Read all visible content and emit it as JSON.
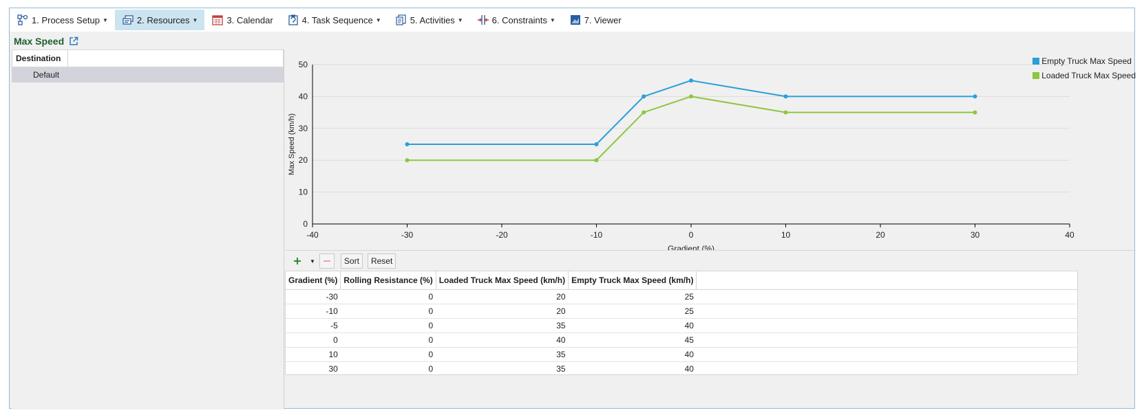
{
  "toolbar": {
    "items": [
      {
        "label": "1. Process Setup",
        "icon": "process-setup-icon",
        "dropdown": true
      },
      {
        "label": "2. Resources",
        "icon": "resources-icon",
        "dropdown": true,
        "active": true
      },
      {
        "label": "3. Calendar",
        "icon": "calendar-icon",
        "dropdown": false
      },
      {
        "label": "4. Task Sequence",
        "icon": "task-sequence-icon",
        "dropdown": true
      },
      {
        "label": "5. Activities",
        "icon": "activities-icon",
        "dropdown": true
      },
      {
        "label": "6. Constraints",
        "icon": "constraints-icon",
        "dropdown": true
      },
      {
        "label": "7. Viewer",
        "icon": "viewer-icon",
        "dropdown": false
      }
    ]
  },
  "section": {
    "title": "Max Speed",
    "icon": "external-link-icon"
  },
  "left_panel": {
    "header": "Destination",
    "rows": [
      "Default"
    ]
  },
  "grid_toolbar": {
    "add_icon": "plus-icon",
    "remove_icon": "minus-icon",
    "sort_label": "Sort",
    "reset_label": "Reset"
  },
  "table": {
    "columns": [
      "Gradient (%)",
      "Rolling Resistance (%)",
      "Loaded Truck Max Speed (km/h)",
      "Empty Truck Max Speed (km/h)"
    ],
    "rows": [
      [
        "-30",
        "0",
        "20",
        "25"
      ],
      [
        "-10",
        "0",
        "20",
        "25"
      ],
      [
        "-5",
        "0",
        "35",
        "40"
      ],
      [
        "0",
        "0",
        "40",
        "45"
      ],
      [
        "10",
        "0",
        "35",
        "40"
      ],
      [
        "30",
        "0",
        "35",
        "40"
      ]
    ]
  },
  "colors": {
    "empty": "#2a9fd8",
    "loaded": "#8dc63f",
    "accent": "#cce4f0",
    "title": "#1d5e2b"
  },
  "chart_data": {
    "type": "line",
    "xlabel": "Gradient (%)",
    "ylabel": "Max Speed (km/h)",
    "xlim": [
      -40,
      40
    ],
    "ylim": [
      0,
      50
    ],
    "xticks": [
      -40,
      -30,
      -20,
      -10,
      0,
      10,
      20,
      30,
      40
    ],
    "yticks": [
      0,
      10,
      20,
      30,
      40,
      50
    ],
    "grid": "horizontal",
    "legend": "top-right",
    "x": [
      -30,
      -10,
      -5,
      0,
      10,
      30
    ],
    "series": [
      {
        "name": "Empty Truck Max Speed",
        "values": [
          25,
          25,
          40,
          45,
          40,
          40
        ],
        "color": "#2a9fd8"
      },
      {
        "name": "Loaded Truck Max Speed",
        "values": [
          20,
          20,
          35,
          40,
          35,
          35
        ],
        "color": "#8dc63f"
      }
    ]
  }
}
